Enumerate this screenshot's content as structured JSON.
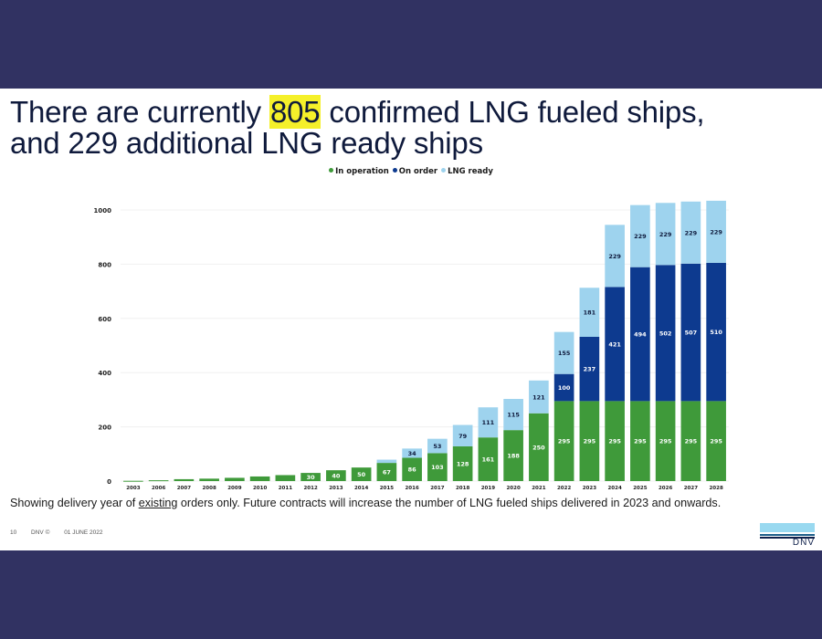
{
  "slide": {
    "title_part1": "There are currently ",
    "title_highlight": "805",
    "title_part2": " confirmed LNG fueled ships,",
    "title_line2": "and 229 additional LNG ready ships",
    "note_part1": "Showing delivery year of ",
    "note_underlined": "existing",
    "note_part2": " orders only. Future contracts will increase the number of LNG fueled ships delivered in 2023 and onwards.",
    "footer": {
      "page_number": "10",
      "copyright": "DNV ©",
      "date": "01 JUNE 2022"
    },
    "logo_text": "DNV"
  },
  "colors": {
    "in_operation": "#3f9a3a",
    "on_order": "#0d3a8f",
    "lng_ready": "#9ed3ee",
    "highlight": "#f5f02a",
    "frame": "#313262"
  },
  "chart_data": {
    "type": "bar",
    "stacked": true,
    "title": "",
    "xlabel": "",
    "ylabel": "",
    "ylim": [
      0,
      1000
    ],
    "yticks": [
      0,
      200,
      400,
      600,
      800,
      1000
    ],
    "grid": true,
    "legend_position": "top-center",
    "categories": [
      "2003",
      "2006",
      "2007",
      "2008",
      "2009",
      "2010",
      "2011",
      "2012",
      "2013",
      "2014",
      "2015",
      "2016",
      "2017",
      "2018",
      "2019",
      "2020",
      "2021",
      "2022",
      "2023",
      "2024",
      "2025",
      "2026",
      "2027",
      "2028"
    ],
    "series": [
      {
        "name": "In operation",
        "key": "in_operation",
        "values": [
          1,
          3,
          7,
          9,
          12,
          17,
          22,
          30,
          40,
          50,
          67,
          86,
          103,
          128,
          161,
          188,
          250,
          295,
          295,
          295,
          295,
          295,
          295,
          295
        ],
        "labels": [
          "",
          "",
          "",
          "",
          "",
          "",
          "",
          "30",
          "40",
          "50",
          "67",
          "86",
          "103",
          "128",
          "161",
          "188",
          "250",
          "295",
          "295",
          "295",
          "295",
          "295",
          "295",
          "295"
        ]
      },
      {
        "name": "On order",
        "key": "on_order",
        "values": [
          0,
          0,
          0,
          0,
          0,
          0,
          0,
          0,
          0,
          0,
          0,
          0,
          0,
          0,
          0,
          0,
          0,
          100,
          237,
          421,
          494,
          502,
          507,
          510
        ],
        "labels": [
          "",
          "",
          "",
          "",
          "",
          "",
          "",
          "",
          "",
          "",
          "",
          "",
          "",
          "",
          "",
          "",
          "",
          "100",
          "237",
          "421",
          "494",
          "502",
          "507",
          "510"
        ]
      },
      {
        "name": "LNG ready",
        "key": "lng_ready",
        "values": [
          0,
          0,
          0,
          0,
          0,
          0,
          0,
          0,
          0,
          0,
          12,
          34,
          53,
          79,
          111,
          115,
          121,
          155,
          181,
          229,
          229,
          229,
          229,
          229
        ],
        "labels": [
          "",
          "",
          "",
          "",
          "",
          "",
          "",
          "",
          "",
          "",
          "",
          "34",
          "53",
          "79",
          "111",
          "115",
          "121",
          "155",
          "181",
          "229",
          "229",
          "229",
          "229",
          "229"
        ]
      }
    ]
  }
}
